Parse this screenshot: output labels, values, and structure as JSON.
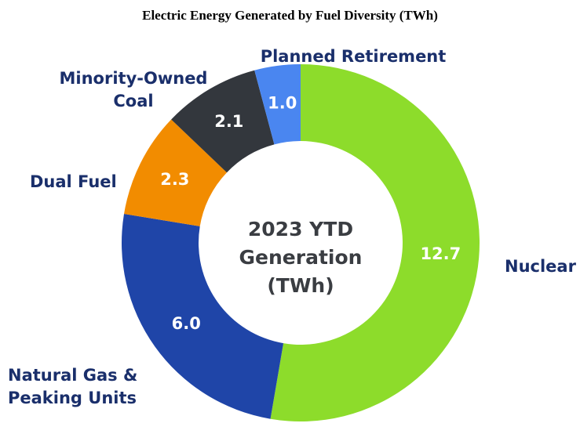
{
  "chart_data": {
    "type": "donut",
    "title": "Electric Energy Generated by Fuel Diversity (TWh)",
    "center_label": "2023 YTD Generation (TWh)",
    "categories": [
      "Nuclear",
      "Natural Gas & Peaking Units",
      "Dual Fuel",
      "Minority-Owned Coal",
      "Planned Retirement"
    ],
    "values": [
      12.7,
      6.0,
      2.3,
      2.1,
      1.0
    ],
    "value_labels": [
      "12.7",
      "6.0",
      "2.3",
      "2.1",
      "1.0"
    ],
    "colors": [
      "#8ddc2b",
      "#1f45a8",
      "#f28c00",
      "#33373d",
      "#4a86f0"
    ]
  }
}
